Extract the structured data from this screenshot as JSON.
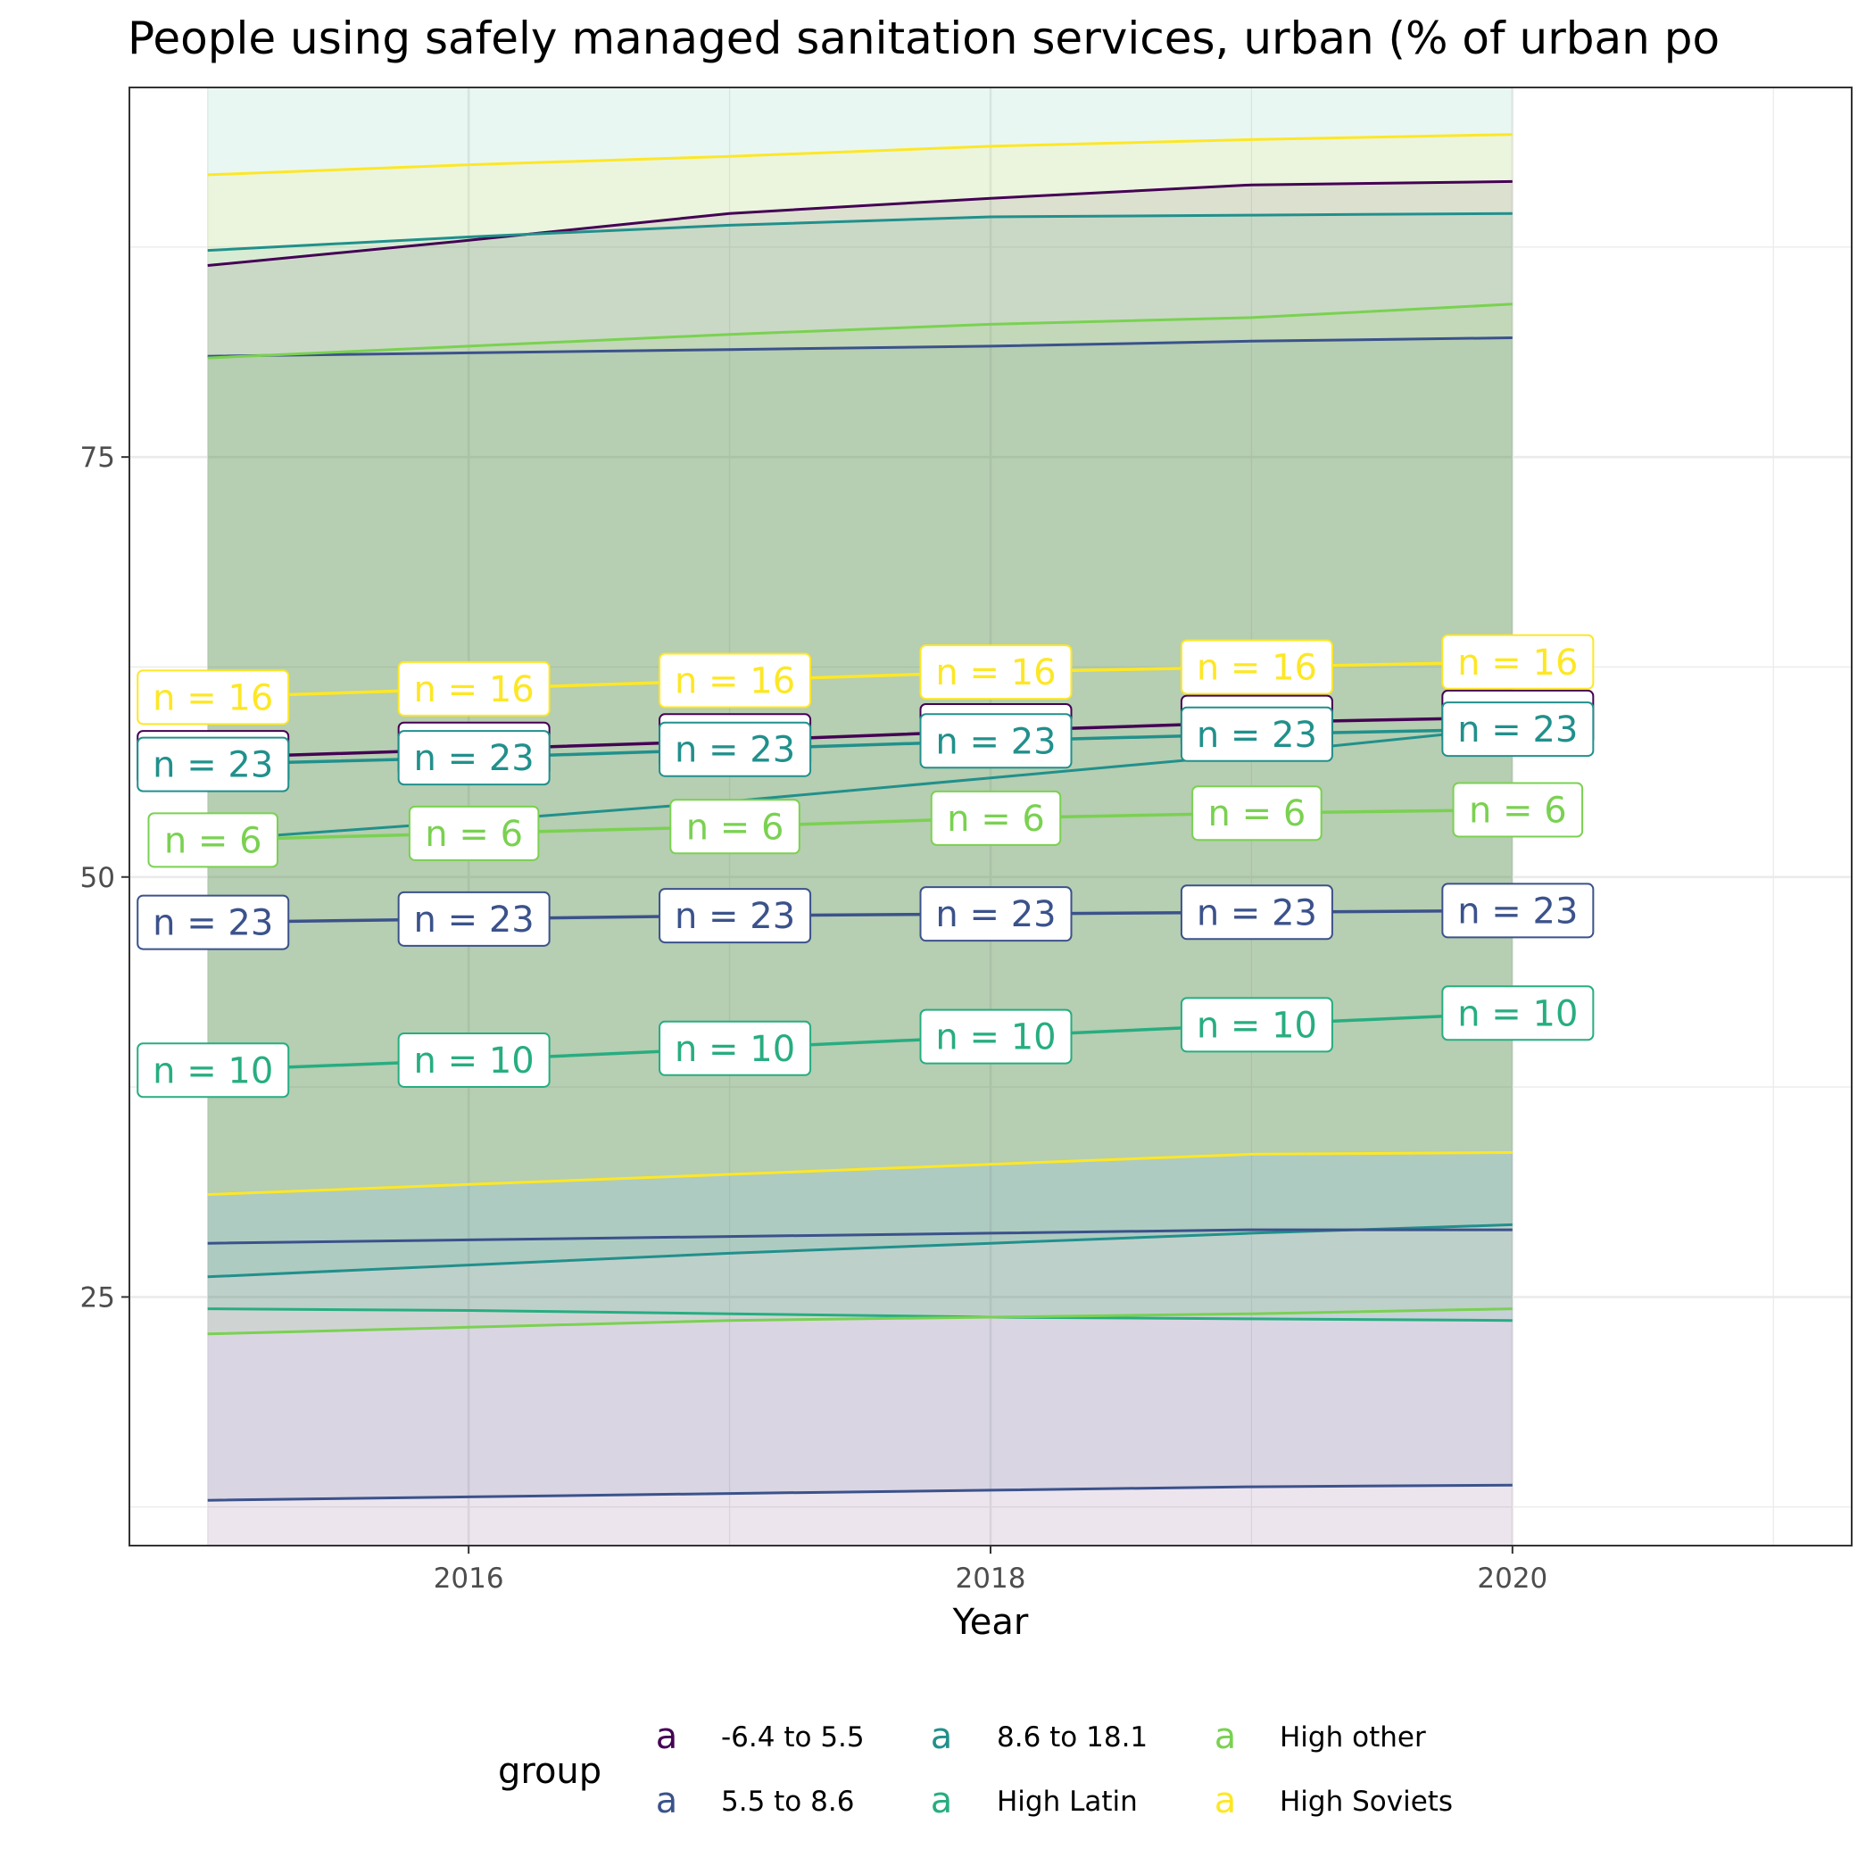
{
  "chart_data": {
    "type": "line",
    "title": "People using safely managed sanitation services, urban (% of urban po",
    "xlabel": "Year",
    "ylabel": "",
    "xlim": [
      2014.7,
      2021.3
    ],
    "ylim": [
      10.2,
      97
    ],
    "x_ticks": [
      2016,
      2018,
      2020
    ],
    "y_ticks": [
      25,
      50,
      75
    ],
    "grid": true,
    "legend_position": "bottom",
    "legend_title": "group",
    "legend_key_glyph": "a",
    "x": [
      2015,
      2016,
      2017,
      2018,
      2019,
      2020
    ],
    "series": [
      {
        "name": "-6.4 to 5.5",
        "color": "#440154",
        "mean": [
          57.1,
          57.6,
          58.1,
          58.7,
          59.2,
          59.5
        ],
        "n": [
          23,
          23,
          23,
          23,
          23,
          23
        ],
        "lower": [
          null,
          null,
          null,
          null,
          null,
          null
        ],
        "upper": [
          86.4,
          87.9,
          89.5,
          90.4,
          91.2,
          91.4
        ]
      },
      {
        "name": "5.5 to 8.6",
        "color": "#3B528B",
        "mean": [
          47.3,
          47.5,
          47.7,
          47.8,
          47.9,
          48.0
        ],
        "n": [
          23,
          23,
          23,
          23,
          23,
          23
        ],
        "lower": [
          12.9,
          13.1,
          13.3,
          13.5,
          13.7,
          13.8
        ],
        "upper": [
          81.0,
          81.2,
          81.4,
          81.6,
          81.9,
          82.1
        ]
      },
      {
        "name": "8.6 to 18.1",
        "color": "#21908C",
        "mean": [
          56.7,
          57.1,
          57.6,
          58.1,
          58.5,
          58.8
        ],
        "n": [
          23,
          23,
          23,
          23,
          23,
          23
        ],
        "lower": [
          26.2,
          26.9,
          27.6,
          28.2,
          28.8,
          29.3
        ],
        "upper": [
          87.3,
          88.1,
          88.8,
          89.3,
          89.4,
          89.5
        ]
      },
      {
        "name": "High Latin",
        "color": "#27AD81",
        "mean": [
          38.5,
          39.1,
          39.8,
          40.5,
          41.2,
          41.9
        ],
        "n": [
          10,
          10,
          10,
          10,
          10,
          10
        ],
        "lower": [
          24.3,
          24.2,
          24.0,
          23.8,
          23.7,
          23.6
        ],
        "upper": [
          null,
          null,
          null,
          null,
          null,
          null
        ]
      },
      {
        "name": "High other",
        "color": "#7AD151",
        "mean": [
          52.2,
          52.6,
          53.0,
          53.5,
          53.8,
          54.0
        ],
        "n": [
          6,
          6,
          6,
          6,
          6,
          6
        ],
        "lower": [
          22.8,
          23.2,
          23.6,
          23.8,
          24.0,
          24.3
        ],
        "upper": [
          80.9,
          81.6,
          82.3,
          82.9,
          83.3,
          84.1
        ]
      },
      {
        "name": "High Soviets",
        "color": "#FDE725",
        "mean": [
          60.7,
          61.2,
          61.7,
          62.2,
          62.5,
          62.8
        ],
        "n": [
          16,
          16,
          16,
          16,
          16,
          16
        ],
        "lower": [
          31.1,
          31.7,
          32.3,
          32.9,
          33.5,
          33.6
        ],
        "upper": [
          91.8,
          92.4,
          92.9,
          93.5,
          93.9,
          94.2
        ]
      }
    ],
    "extra_lines": [
      {
        "color": "#3B528B",
        "values": [
          28.2,
          28.4,
          28.6,
          28.8,
          29.0,
          29.0
        ]
      },
      {
        "color": "#440154",
        "values": [
          null,
          null,
          null,
          null,
          null,
          null
        ]
      },
      {
        "color": "#21908C",
        "values": [
          52.2,
          53.3,
          54.5,
          55.9,
          57.3,
          58.9
        ]
      }
    ]
  }
}
